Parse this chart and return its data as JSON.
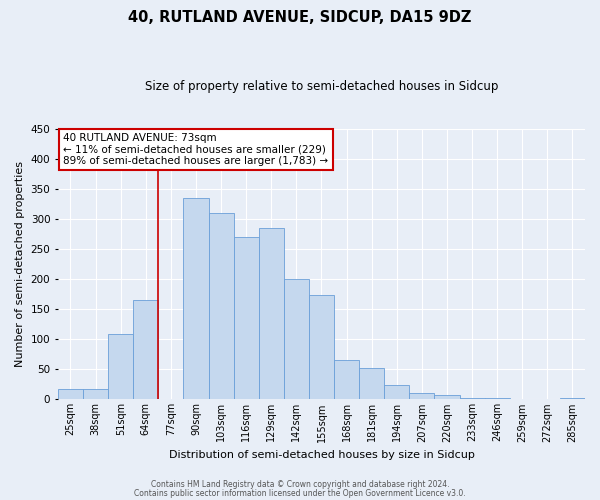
{
  "title": "40, RUTLAND AVENUE, SIDCUP, DA15 9DZ",
  "subtitle": "Size of property relative to semi-detached houses in Sidcup",
  "xlabel": "Distribution of semi-detached houses by size in Sidcup",
  "ylabel": "Number of semi-detached properties",
  "footer_line1": "Contains HM Land Registry data © Crown copyright and database right 2024.",
  "footer_line2": "Contains public sector information licensed under the Open Government Licence v3.0.",
  "bar_labels": [
    "25sqm",
    "38sqm",
    "51sqm",
    "64sqm",
    "77sqm",
    "90sqm",
    "103sqm",
    "116sqm",
    "129sqm",
    "142sqm",
    "155sqm",
    "168sqm",
    "181sqm",
    "194sqm",
    "207sqm",
    "220sqm",
    "233sqm",
    "246sqm",
    "259sqm",
    "272sqm",
    "285sqm"
  ],
  "bar_values": [
    18,
    18,
    109,
    165,
    0,
    335,
    310,
    270,
    285,
    200,
    173,
    65,
    53,
    24,
    11,
    7,
    2,
    2,
    1,
    0,
    2
  ],
  "bar_color": "#c5d8ee",
  "bar_edgecolor": "#6a9fd8",
  "annotation_title": "40 RUTLAND AVENUE: 73sqm",
  "annotation_line2": "← 11% of semi-detached houses are smaller (229)",
  "annotation_line3": "89% of semi-detached houses are larger (1,783) →",
  "vline_bin_index": 4,
  "ylim": [
    0,
    450
  ],
  "yticks": [
    0,
    50,
    100,
    150,
    200,
    250,
    300,
    350,
    400,
    450
  ],
  "background_color": "#e8eef7",
  "grid_color": "#ffffff",
  "annotation_box_facecolor": "#ffffff",
  "annotation_box_edgecolor": "#cc0000",
  "vline_color": "#cc0000"
}
